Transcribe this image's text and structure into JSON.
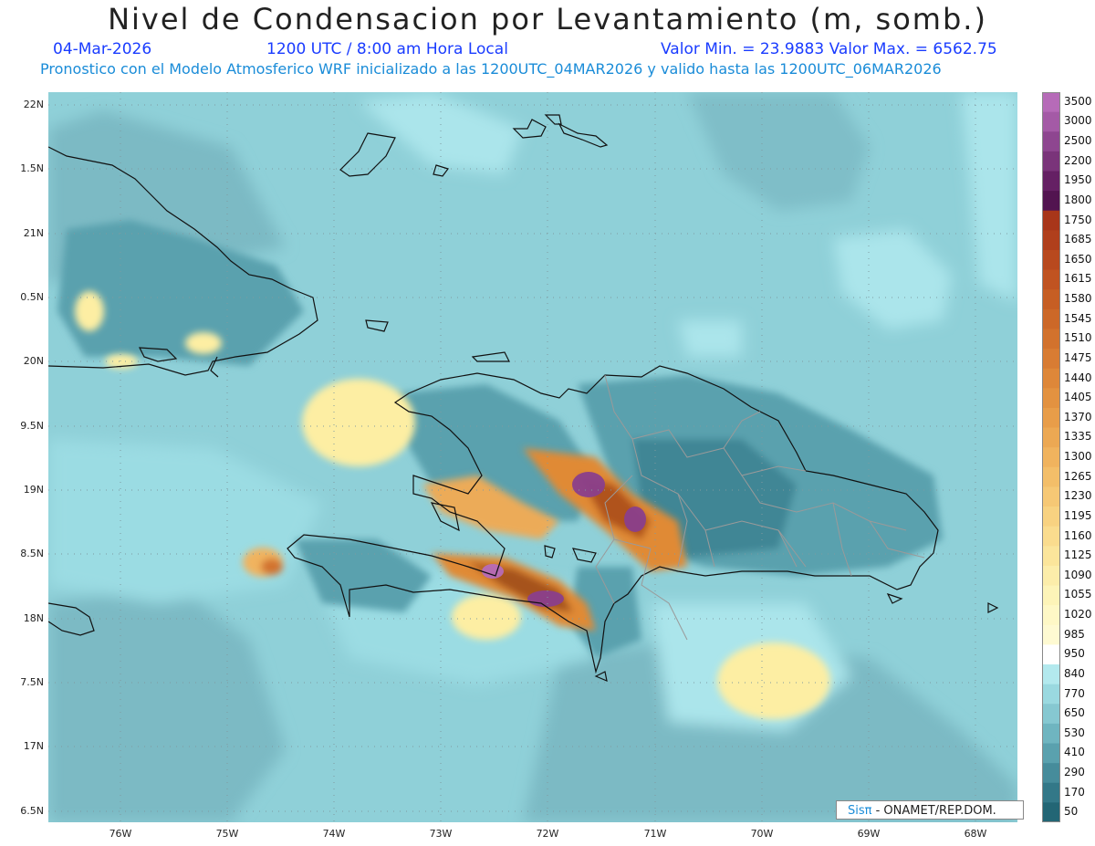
{
  "header": {
    "title": "Nivel de Condensacion por Levantamiento (m, somb.)",
    "date": "04-Mar-2026",
    "time": "1200 UTC / 8:00 am Hora Local",
    "minmax": "Valor Min. = 23.9883  Valor Max. = 6562.75",
    "model_info": "Pronostico con el Modelo Atmosferico WRF inicializado a las 1200UTC_04MAR2026 y valido hasta las  1200UTC_06MAR2026"
  },
  "axes": {
    "lat_labels": [
      "22N",
      "1.5N",
      "21N",
      "0.5N",
      "20N",
      "9.5N",
      "19N",
      "8.5N",
      "18N",
      "7.5N",
      "17N",
      "6.5N"
    ],
    "lon_labels": [
      "76W",
      "75W",
      "74W",
      "73W",
      "72W",
      "71W",
      "70W",
      "69W",
      "68W"
    ]
  },
  "colorbar": {
    "labels": [
      "3500",
      "3000",
      "2500",
      "2200",
      "1950",
      "1800",
      "1750",
      "1685",
      "1650",
      "1615",
      "1580",
      "1545",
      "1510",
      "1475",
      "1440",
      "1405",
      "1370",
      "1335",
      "1300",
      "1265",
      "1230",
      "1195",
      "1160",
      "1125",
      "1090",
      "1055",
      "1020",
      "985",
      "950",
      "840",
      "770",
      "650",
      "530",
      "410",
      "290",
      "170",
      "50"
    ],
    "colors": [
      "#b66bb8",
      "#a45aa6",
      "#8e4690",
      "#7a347a",
      "#652064",
      "#521450",
      "#a8361a",
      "#b03f1c",
      "#b8491e",
      "#c05321",
      "#c65e24",
      "#cc6828",
      "#d2722d",
      "#d87c33",
      "#de8739",
      "#e39240",
      "#e89d49",
      "#eca853",
      "#f0b35e",
      "#f3be69",
      "#f6c875",
      "#f8d281",
      "#fadc8e",
      "#fbe59b",
      "#fcedaa",
      "#fdf4b8",
      "#fef8c6",
      "#fefad2",
      "#ffffff",
      "#b3e9ee",
      "#9ad9e0",
      "#86c8d1",
      "#6fb5c0",
      "#5aa1ae",
      "#468c9b",
      "#337888",
      "#236675"
    ],
    "value_colors": {
      "ocean_base": "#86c8d1",
      "light": "#a8e4ea",
      "moist": "#5aa1ae",
      "dry_yellow": "#fdf0a8",
      "orange": "#e08a35",
      "brown": "#a6531d",
      "purple": "#8a3f8c"
    }
  },
  "credit": {
    "prefix": "Sis",
    "pi": "π",
    "suffix": " - ONAMET/REP.DOM."
  }
}
